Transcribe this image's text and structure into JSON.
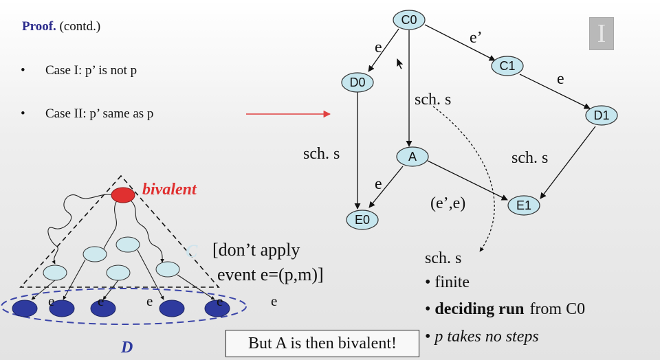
{
  "proof": {
    "bold": "Proof.",
    "rest": "(contd.)"
  },
  "bullets": [
    {
      "dot": "•",
      "text": "Case I: p’ is not p"
    },
    {
      "dot": "•",
      "text": "Case II: p’ same as p"
    }
  ],
  "graph": {
    "nodes": {
      "c0": "C0",
      "c1": "C1",
      "d0": "D0",
      "d1": "D1",
      "a": "A",
      "e0": "E0",
      "e1": "E1"
    },
    "edge_labels": {
      "c0_d0": "e",
      "c0_c1": "e’",
      "c1_d1": "e",
      "c0_a": "sch. s",
      "d0_e0": "sch. s",
      "d1_e1": "sch. s",
      "a_e0": "e",
      "a_e1": "(e’,e)"
    }
  },
  "triangle": {
    "top_label": "bivalent",
    "c_label": "C",
    "d_label": "D",
    "e_labels": [
      "e",
      "e",
      "e",
      "e",
      "e"
    ]
  },
  "note": {
    "line1": "[don’t apply",
    "line2": "event e=(p,m)]"
  },
  "sch_list": {
    "title": "sch. s",
    "items": [
      {
        "dot": "•",
        "text": "finite"
      },
      {
        "dot": "•",
        "bold": "deciding run",
        "rest": "from C0"
      },
      {
        "dot": "•",
        "text": "p takes no steps"
      }
    ]
  },
  "popup_text": "But A is then bivalent!",
  "corner_icon": "I",
  "colors": {
    "node_fill": "#c6e6ee",
    "bivalent_red": "#e03030",
    "d_blue": "#2e3a9e",
    "proof_blue": "#2b2b8c",
    "arrow_red": "#e04040"
  }
}
